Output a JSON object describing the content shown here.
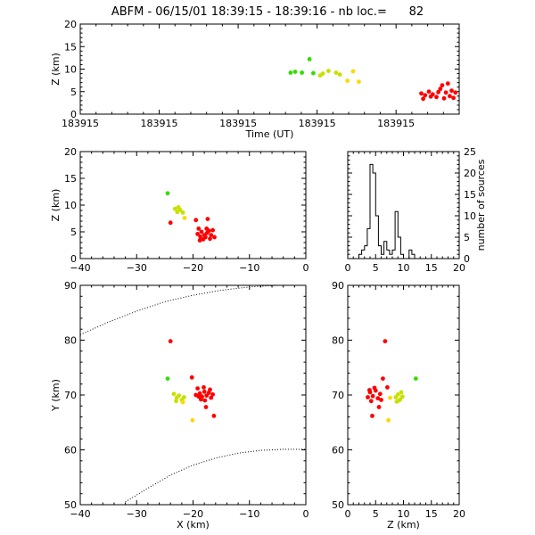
{
  "title": "ABFM - 06/15/01 18:39:15 - 18:39:16 - nb loc.=      82",
  "colors": {
    "early": "#33dd00",
    "mid": "#c8e000",
    "late_mid": "#ffd800",
    "late": "#ff0000"
  },
  "chart_data": [
    {
      "name": "altitude-vs-time",
      "type": "scatter",
      "title": "",
      "xlabel": "Time (UT)",
      "ylabel": "Z (km)",
      "xlim": [
        0,
        1
      ],
      "ylim": [
        0,
        20
      ],
      "x_tick_labels": [
        "183915",
        "183915",
        "183915",
        "183915",
        "183915"
      ],
      "y_ticks": [
        0,
        5,
        10,
        15,
        20
      ],
      "points": [
        {
          "x": 0.555,
          "y": 9.2,
          "c": "early"
        },
        {
          "x": 0.567,
          "y": 9.4,
          "c": "early"
        },
        {
          "x": 0.585,
          "y": 9.2,
          "c": "early"
        },
        {
          "x": 0.605,
          "y": 12.2,
          "c": "early"
        },
        {
          "x": 0.615,
          "y": 9.1,
          "c": "early"
        },
        {
          "x": 0.633,
          "y": 8.6,
          "c": "mid"
        },
        {
          "x": 0.64,
          "y": 9.0,
          "c": "mid"
        },
        {
          "x": 0.655,
          "y": 9.6,
          "c": "mid"
        },
        {
          "x": 0.675,
          "y": 9.2,
          "c": "mid"
        },
        {
          "x": 0.685,
          "y": 8.8,
          "c": "mid"
        },
        {
          "x": 0.705,
          "y": 7.4,
          "c": "late_mid"
        },
        {
          "x": 0.72,
          "y": 9.5,
          "c": "late_mid"
        },
        {
          "x": 0.735,
          "y": 7.2,
          "c": "late_mid"
        },
        {
          "x": 0.9,
          "y": 4.6,
          "c": "late"
        },
        {
          "x": 0.91,
          "y": 4.2,
          "c": "late"
        },
        {
          "x": 0.92,
          "y": 5.0,
          "c": "late"
        },
        {
          "x": 0.93,
          "y": 4.4,
          "c": "late"
        },
        {
          "x": 0.94,
          "y": 3.8,
          "c": "late"
        },
        {
          "x": 0.95,
          "y": 5.6,
          "c": "late"
        },
        {
          "x": 0.955,
          "y": 6.4,
          "c": "late"
        },
        {
          "x": 0.965,
          "y": 4.8,
          "c": "late"
        },
        {
          "x": 0.97,
          "y": 6.8,
          "c": "late"
        },
        {
          "x": 0.975,
          "y": 4.0,
          "c": "late"
        },
        {
          "x": 0.98,
          "y": 5.2,
          "c": "late"
        },
        {
          "x": 0.985,
          "y": 3.6,
          "c": "late"
        },
        {
          "x": 0.99,
          "y": 4.8,
          "c": "late"
        },
        {
          "x": 0.905,
          "y": 3.4,
          "c": "late"
        },
        {
          "x": 0.925,
          "y": 3.9,
          "c": "late"
        },
        {
          "x": 0.945,
          "y": 4.9,
          "c": "late"
        },
        {
          "x": 0.96,
          "y": 3.5,
          "c": "late"
        }
      ]
    },
    {
      "name": "altitude-vs-x",
      "type": "scatter",
      "title": "",
      "xlabel": "",
      "ylabel": "Z (km)",
      "xlim": [
        -40,
        0
      ],
      "ylim": [
        0,
        20
      ],
      "x_ticks": [
        -40,
        -30,
        -20,
        -10,
        0
      ],
      "y_ticks": [
        0,
        5,
        10,
        15,
        20
      ],
      "points": [
        {
          "x": -24.5,
          "y": 12.2,
          "c": "early"
        },
        {
          "x": -23.2,
          "y": 9.3,
          "c": "mid"
        },
        {
          "x": -22.8,
          "y": 8.7,
          "c": "mid"
        },
        {
          "x": -22.3,
          "y": 9.1,
          "c": "mid"
        },
        {
          "x": -21.8,
          "y": 8.6,
          "c": "mid"
        },
        {
          "x": -22.6,
          "y": 9.6,
          "c": "mid"
        },
        {
          "x": -21.5,
          "y": 7.6,
          "c": "late_mid"
        },
        {
          "x": -24.0,
          "y": 6.7,
          "c": "late"
        },
        {
          "x": -19.5,
          "y": 7.2,
          "c": "late"
        },
        {
          "x": -17.4,
          "y": 7.4,
          "c": "late"
        },
        {
          "x": -19.0,
          "y": 5.6,
          "c": "late"
        },
        {
          "x": -18.5,
          "y": 5.0,
          "c": "late"
        },
        {
          "x": -18.0,
          "y": 4.4,
          "c": "late"
        },
        {
          "x": -17.5,
          "y": 4.8,
          "c": "late"
        },
        {
          "x": -17.2,
          "y": 5.2,
          "c": "late"
        },
        {
          "x": -18.7,
          "y": 4.1,
          "c": "late"
        },
        {
          "x": -18.2,
          "y": 3.6,
          "c": "late"
        },
        {
          "x": -17.8,
          "y": 4.0,
          "c": "late"
        },
        {
          "x": -16.8,
          "y": 4.4,
          "c": "late"
        },
        {
          "x": -19.2,
          "y": 4.6,
          "c": "late"
        },
        {
          "x": -16.5,
          "y": 5.3,
          "c": "late"
        },
        {
          "x": -17.0,
          "y": 3.7,
          "c": "late"
        },
        {
          "x": -18.8,
          "y": 3.4,
          "c": "late"
        },
        {
          "x": -17.6,
          "y": 5.6,
          "c": "late"
        },
        {
          "x": -16.2,
          "y": 4.0,
          "c": "late"
        }
      ]
    },
    {
      "name": "source-altitude-histogram",
      "type": "histogram",
      "title": "",
      "xlabel": "",
      "ylabel": "number of sources",
      "xlim": [
        0,
        20
      ],
      "ylim": [
        0,
        25
      ],
      "x_ticks": [
        0,
        5,
        10,
        15,
        20
      ],
      "y_ticks": [
        0,
        5,
        10,
        15,
        20,
        25
      ],
      "bin_width": 0.5,
      "bin_start": 0,
      "counts": [
        0,
        0,
        0,
        0,
        1,
        2,
        3,
        7,
        22,
        20,
        10,
        3,
        1,
        4,
        2,
        1,
        2,
        11,
        5,
        1,
        0,
        0,
        2,
        1,
        0,
        0,
        0,
        0,
        0,
        0,
        0,
        0,
        0,
        0,
        0,
        0,
        0,
        0,
        0,
        0
      ]
    },
    {
      "name": "plan-view-x-y",
      "type": "scatter",
      "title": "",
      "xlabel": "X (km)",
      "ylabel": "Y (km)",
      "xlim": [
        -40,
        0
      ],
      "ylim": [
        50,
        90
      ],
      "x_ticks": [
        -40,
        -30,
        -20,
        -10,
        0
      ],
      "y_ticks": [
        50,
        60,
        70,
        80,
        90
      ],
      "boundary_arcs": [
        [
          [
            -40,
            81
          ],
          [
            -35,
            83.3
          ],
          [
            -30,
            85.3
          ],
          [
            -25,
            87.0
          ],
          [
            -20,
            88.2
          ],
          [
            -15,
            89.1
          ],
          [
            -10,
            89.7
          ],
          [
            -5,
            90.0
          ],
          [
            -2,
            90.0
          ]
        ],
        [
          [
            -32,
            50.5
          ],
          [
            -28,
            53.0
          ],
          [
            -24,
            55.4
          ],
          [
            -20,
            57.2
          ],
          [
            -16,
            58.5
          ],
          [
            -12,
            59.4
          ],
          [
            -8,
            59.9
          ],
          [
            -4,
            60.1
          ],
          [
            0,
            60.1
          ]
        ]
      ],
      "points": [
        {
          "x": -24.0,
          "y": 79.8,
          "c": "late"
        },
        {
          "x": -24.5,
          "y": 73.0,
          "c": "early"
        },
        {
          "x": -20.2,
          "y": 73.2,
          "c": "late"
        },
        {
          "x": -23.4,
          "y": 70.2,
          "c": "mid"
        },
        {
          "x": -22.9,
          "y": 69.5,
          "c": "mid"
        },
        {
          "x": -22.5,
          "y": 69.9,
          "c": "mid"
        },
        {
          "x": -22.0,
          "y": 69.1,
          "c": "mid"
        },
        {
          "x": -21.6,
          "y": 69.6,
          "c": "mid"
        },
        {
          "x": -23.0,
          "y": 68.9,
          "c": "mid"
        },
        {
          "x": -21.8,
          "y": 68.7,
          "c": "late_mid"
        },
        {
          "x": -20.1,
          "y": 65.4,
          "c": "late_mid"
        },
        {
          "x": -19.2,
          "y": 71.2,
          "c": "late"
        },
        {
          "x": -18.8,
          "y": 70.3,
          "c": "late"
        },
        {
          "x": -18.4,
          "y": 69.7,
          "c": "late"
        },
        {
          "x": -18.0,
          "y": 70.6,
          "c": "late"
        },
        {
          "x": -17.6,
          "y": 69.9,
          "c": "late"
        },
        {
          "x": -17.2,
          "y": 70.4,
          "c": "late"
        },
        {
          "x": -16.8,
          "y": 69.5,
          "c": "late"
        },
        {
          "x": -18.6,
          "y": 69.2,
          "c": "late"
        },
        {
          "x": -17.9,
          "y": 69.0,
          "c": "late"
        },
        {
          "x": -17.0,
          "y": 71.0,
          "c": "late"
        },
        {
          "x": -16.5,
          "y": 70.1,
          "c": "late"
        },
        {
          "x": -19.0,
          "y": 69.7,
          "c": "late"
        },
        {
          "x": -18.1,
          "y": 71.4,
          "c": "late"
        },
        {
          "x": -17.7,
          "y": 67.8,
          "c": "late"
        },
        {
          "x": -16.3,
          "y": 66.2,
          "c": "late"
        },
        {
          "x": -19.5,
          "y": 70.0,
          "c": "late"
        }
      ]
    },
    {
      "name": "y-vs-altitude",
      "type": "scatter",
      "title": "",
      "xlabel": "Z (km)",
      "ylabel": "",
      "xlim": [
        0,
        20
      ],
      "ylim": [
        50,
        90
      ],
      "x_ticks": [
        0,
        5,
        10,
        15,
        20
      ],
      "y_ticks": [
        50,
        60,
        70,
        80,
        90
      ],
      "points": [
        {
          "x": 6.7,
          "y": 79.8,
          "c": "late"
        },
        {
          "x": 6.3,
          "y": 73.0,
          "c": "late"
        },
        {
          "x": 12.2,
          "y": 73.0,
          "c": "early"
        },
        {
          "x": 7.1,
          "y": 71.4,
          "c": "late"
        },
        {
          "x": 4.0,
          "y": 70.5,
          "c": "late"
        },
        {
          "x": 4.5,
          "y": 69.8,
          "c": "late"
        },
        {
          "x": 5.0,
          "y": 70.8,
          "c": "late"
        },
        {
          "x": 5.4,
          "y": 69.4,
          "c": "late"
        },
        {
          "x": 3.6,
          "y": 69.6,
          "c": "late"
        },
        {
          "x": 4.2,
          "y": 68.9,
          "c": "late"
        },
        {
          "x": 5.8,
          "y": 70.2,
          "c": "late"
        },
        {
          "x": 4.8,
          "y": 71.3,
          "c": "late"
        },
        {
          "x": 6.0,
          "y": 69.1,
          "c": "late"
        },
        {
          "x": 3.9,
          "y": 70.9,
          "c": "late"
        },
        {
          "x": 4.4,
          "y": 66.2,
          "c": "late"
        },
        {
          "x": 5.6,
          "y": 67.8,
          "c": "late"
        },
        {
          "x": 7.6,
          "y": 69.5,
          "c": "late_mid"
        },
        {
          "x": 7.3,
          "y": 65.4,
          "c": "late_mid"
        },
        {
          "x": 8.6,
          "y": 69.6,
          "c": "mid"
        },
        {
          "x": 9.0,
          "y": 70.1,
          "c": "mid"
        },
        {
          "x": 9.4,
          "y": 69.2,
          "c": "mid"
        },
        {
          "x": 8.8,
          "y": 68.8,
          "c": "mid"
        },
        {
          "x": 9.6,
          "y": 70.5,
          "c": "mid"
        },
        {
          "x": 9.2,
          "y": 69.0,
          "c": "mid"
        },
        {
          "x": 9.8,
          "y": 69.7,
          "c": "mid"
        }
      ]
    }
  ]
}
